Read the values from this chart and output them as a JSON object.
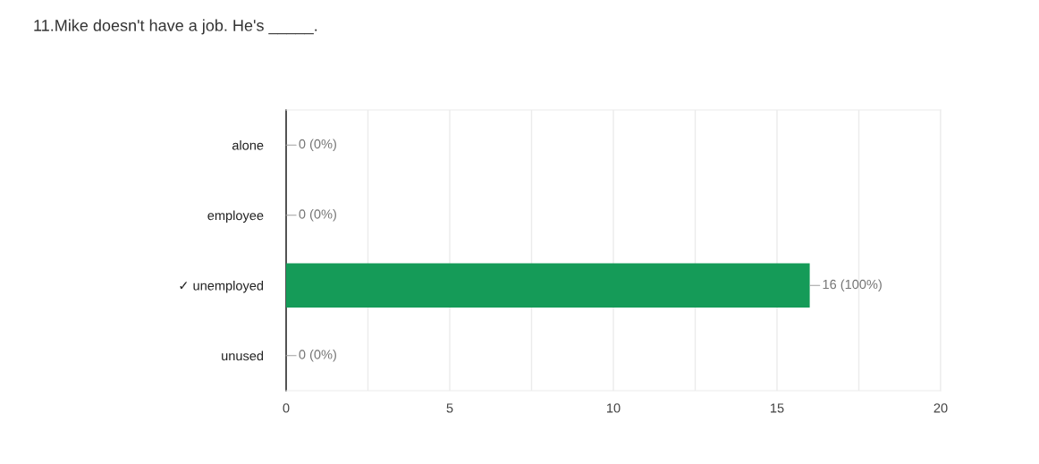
{
  "chart_data": {
    "type": "bar",
    "orientation": "horizontal",
    "title": "11.Mike doesn't have a job. He's _____.",
    "categories": [
      "alone",
      "employee",
      "✓ unemployed",
      "unused"
    ],
    "values": [
      0,
      0,
      16,
      0
    ],
    "color": "#159b58",
    "value_labels": [
      "0 (0%)",
      "0 (0%)",
      "16 (100%)",
      "0 (0%)"
    ],
    "xlim": [
      0,
      20
    ],
    "xticks": [
      0,
      {
        "value": 2.5,
        "label": null
      },
      5,
      {
        "value": 7.5,
        "label": null
      },
      10,
      {
        "value": 12.5,
        "label": null
      },
      15,
      {
        "value": 17.5,
        "label": null
      },
      20
    ],
    "grid": "x"
  }
}
